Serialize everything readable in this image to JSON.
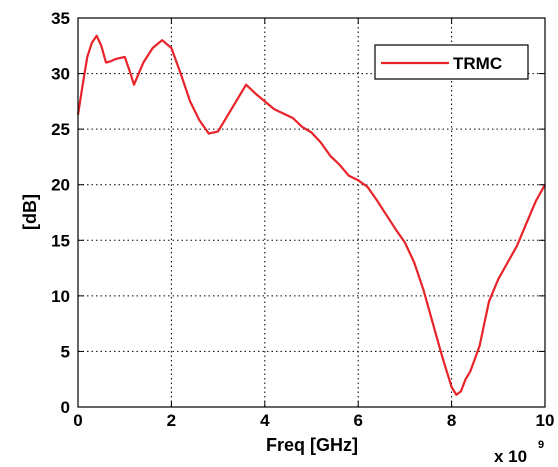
{
  "chart_data": {
    "type": "line",
    "title": "",
    "xlabel": "Freq [GHz]",
    "ylabel": "[dB]",
    "x_multiplier_base": "x 10",
    "x_multiplier_exponent": "9",
    "xlim": [
      0,
      10
    ],
    "ylim": [
      0,
      35
    ],
    "xticks": [
      0,
      2,
      4,
      6,
      8,
      10
    ],
    "yticks": [
      0,
      5,
      10,
      15,
      20,
      25,
      30,
      35
    ],
    "grid": true,
    "legend_position": "top-right",
    "series": [
      {
        "name": "TRMC",
        "color": "#e8232a",
        "x": [
          0,
          0.1,
          0.2,
          0.3,
          0.4,
          0.5,
          0.6,
          0.7,
          0.8,
          1.0,
          1.1,
          1.2,
          1.3,
          1.4,
          1.6,
          1.8,
          2.0,
          2.2,
          2.4,
          2.6,
          2.8,
          3.0,
          3.2,
          3.4,
          3.6,
          3.8,
          4.0,
          4.2,
          4.4,
          4.6,
          4.8,
          5.0,
          5.2,
          5.4,
          5.6,
          5.8,
          6.0,
          6.2,
          6.4,
          6.6,
          6.8,
          7.0,
          7.2,
          7.4,
          7.6,
          7.8,
          8.0,
          8.1,
          8.2,
          8.3,
          8.4,
          8.6,
          8.8,
          9.0,
          9.2,
          9.4,
          9.6,
          9.8,
          10.0
        ],
        "y": [
          26.3,
          29.0,
          31.5,
          32.8,
          33.4,
          32.5,
          31.0,
          31.1,
          31.3,
          31.5,
          30.3,
          29.0,
          30.0,
          31.0,
          32.3,
          33.0,
          32.3,
          30.0,
          27.5,
          25.8,
          24.6,
          24.8,
          26.2,
          27.6,
          29.0,
          28.2,
          27.5,
          26.8,
          26.4,
          26.0,
          25.2,
          24.7,
          23.8,
          22.6,
          21.8,
          20.8,
          20.4,
          19.8,
          18.6,
          17.3,
          16.0,
          14.8,
          13.0,
          10.5,
          7.5,
          4.5,
          1.8,
          1.1,
          1.4,
          2.5,
          3.2,
          5.5,
          9.5,
          11.5,
          13.0,
          14.5,
          16.5,
          18.5,
          20.0
        ]
      }
    ]
  }
}
